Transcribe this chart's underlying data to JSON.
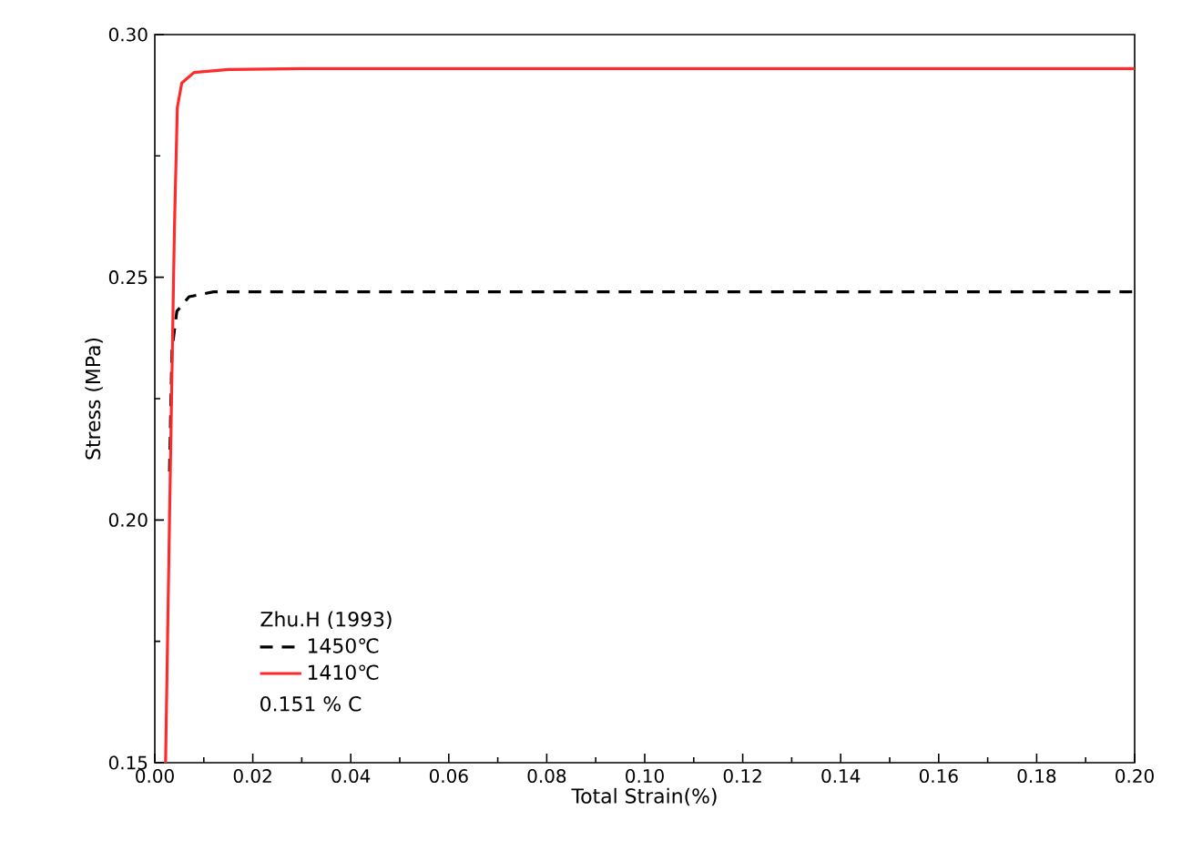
{
  "chart_data": {
    "type": "line",
    "xlabel": "Total Strain(%)",
    "ylabel": "Stress (MPa)",
    "legend_title": "Zhu.H (1993)",
    "annotations": [
      "0.151  % C"
    ],
    "series": [
      {
        "name": "1450℃",
        "color": "#000000",
        "line_style": "dashed",
        "x": [
          0.003,
          0.0035,
          0.0045,
          0.007,
          0.012,
          0.2
        ],
        "values": [
          0.21,
          0.235,
          0.243,
          0.246,
          0.247,
          0.247
        ]
      },
      {
        "name": "1410℃",
        "color": "#ff2a2a",
        "line_style": "solid",
        "x": [
          0.0022,
          0.003,
          0.004,
          0.0046,
          0.0055,
          0.008,
          0.015,
          0.03,
          0.2
        ],
        "values": [
          0.15,
          0.2,
          0.26,
          0.285,
          0.29,
          0.2922,
          0.2928,
          0.293,
          0.293
        ]
      }
    ],
    "xlim": [
      0,
      0.2
    ],
    "ylim": [
      0.15,
      0.3
    ],
    "xticks": [
      {
        "value": 0,
        "label": "0.00"
      },
      0.02,
      0.04,
      0.06,
      0.08,
      {
        "value": 0.1,
        "label": "0.10"
      },
      0.12,
      0.14,
      0.16,
      0.18,
      {
        "value": 0.2,
        "label": "0.20"
      }
    ],
    "yticks": [
      0.15,
      {
        "value": 0.2,
        "label": "0.20"
      },
      0.25,
      {
        "value": 0.3,
        "label": "0.30"
      }
    ],
    "grid": false,
    "legend": "bottom left",
    "marker": "none"
  }
}
